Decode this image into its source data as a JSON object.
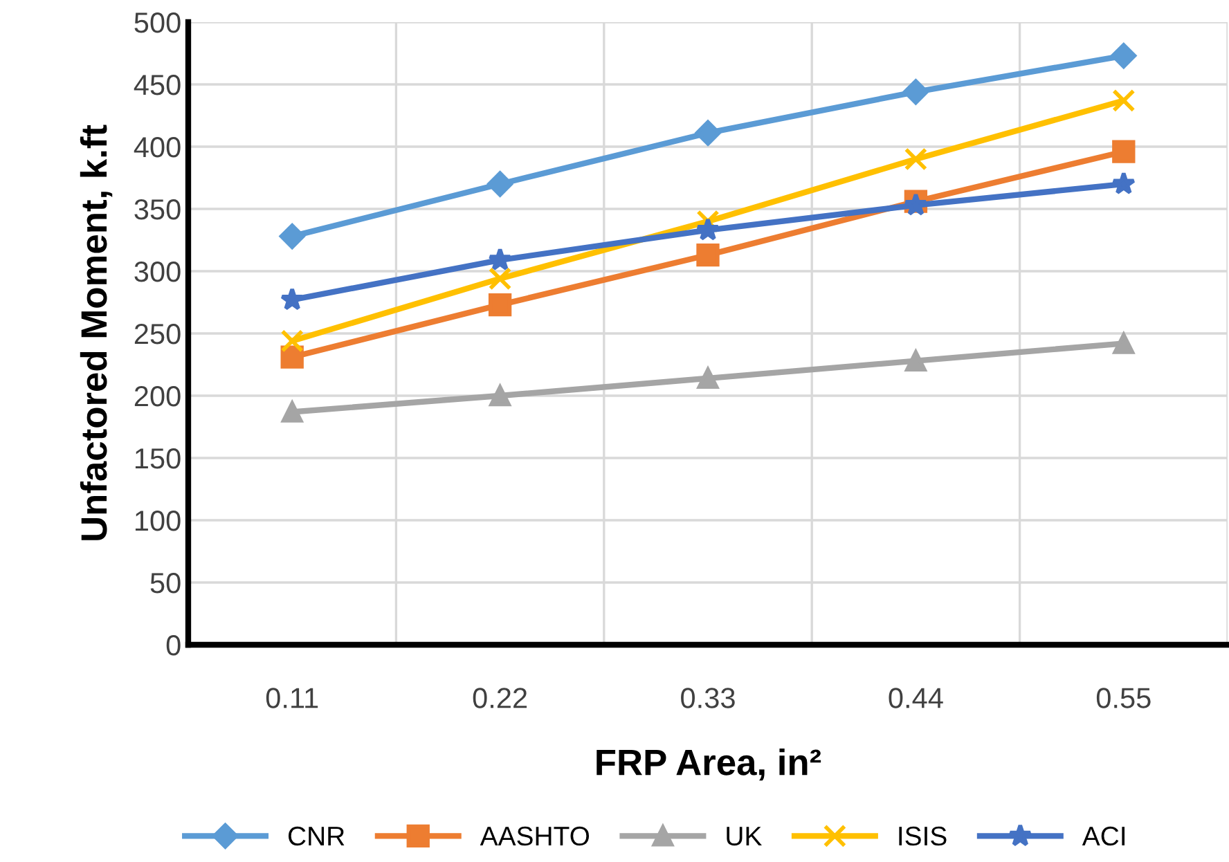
{
  "chart_data": {
    "type": "line",
    "xlabel": "FRP Area, in²",
    "ylabel": "Unfactored Moment, k.ft",
    "categories": [
      "0.11",
      "0.22",
      "0.33",
      "0.44",
      "0.55"
    ],
    "series": [
      {
        "name": "CNR",
        "color": "#5b9bd5",
        "marker": "diamond",
        "values": [
          328,
          370,
          411,
          444,
          473
        ]
      },
      {
        "name": "AASHTO",
        "color": "#ed7d31",
        "marker": "square",
        "values": [
          231,
          273,
          313,
          356,
          396
        ]
      },
      {
        "name": "UK",
        "color": "#a5a5a5",
        "marker": "triangle",
        "values": [
          187,
          200,
          214,
          228,
          242
        ]
      },
      {
        "name": "ISIS",
        "color": "#ffc000",
        "marker": "cross",
        "values": [
          244,
          294,
          340,
          390,
          437
        ]
      },
      {
        "name": "ACI",
        "color": "#4472c4",
        "marker": "star",
        "values": [
          277,
          309,
          333,
          353,
          370
        ]
      }
    ],
    "ylim": [
      0,
      500
    ],
    "yticks": [
      0,
      50,
      100,
      150,
      200,
      250,
      300,
      350,
      400,
      450,
      500
    ],
    "grid": true,
    "legend": "bottom",
    "line_style": "solid"
  }
}
